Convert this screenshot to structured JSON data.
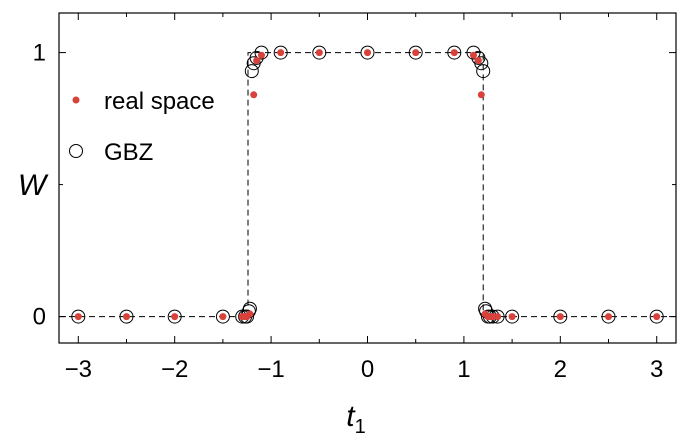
{
  "chart_data": {
    "type": "scatter",
    "xlabel": "t",
    "xlabel_subscript": "1",
    "ylabel": "W",
    "xlim": [
      -3.2,
      3.2
    ],
    "ylim": [
      -0.1,
      1.15
    ],
    "x_ticks": [
      -3,
      -2,
      -1,
      0,
      1,
      2,
      3
    ],
    "x_tick_labels": [
      "−3",
      "−2",
      "−1",
      "0",
      "1",
      "2",
      "3"
    ],
    "y_ticks": [
      0,
      1
    ],
    "y_tick_labels": [
      "0",
      "1"
    ],
    "grid": false,
    "legend_position": "upper-left",
    "series": [
      {
        "name": "real space",
        "marker": "filled-dot",
        "color": "#d9413b",
        "x": [
          -3,
          -2.5,
          -2,
          -1.5,
          -1.3,
          -1.27,
          -1.25,
          -1.22,
          -1.18,
          -1.15,
          -1.1,
          -0.9,
          -0.5,
          0,
          0.5,
          0.9,
          1.1,
          1.15,
          1.18,
          1.22,
          1.25,
          1.27,
          1.3,
          1.35,
          1.5,
          2,
          2.5,
          3
        ],
        "y": [
          0,
          0,
          0,
          0,
          0,
          0,
          0,
          0.01,
          0.84,
          0.97,
          0.99,
          1,
          1,
          1,
          1,
          1,
          0.99,
          0.97,
          0.84,
          0.01,
          0,
          0,
          0,
          0,
          0,
          0,
          0,
          0
        ]
      },
      {
        "name": "GBZ",
        "marker": "open-circle",
        "color": "#000000",
        "x": [
          -3,
          -2.5,
          -2,
          -1.5,
          -1.3,
          -1.27,
          -1.25,
          -1.23,
          -1.22,
          -1.2,
          -1.18,
          -1.15,
          -1.1,
          -0.9,
          -0.5,
          0,
          0.5,
          0.9,
          1.1,
          1.15,
          1.18,
          1.2,
          1.22,
          1.23,
          1.25,
          1.27,
          1.3,
          1.35,
          1.5,
          2,
          2.5,
          3
        ],
        "y": [
          0,
          0,
          0,
          0,
          0,
          0,
          0,
          0.02,
          0.03,
          0.93,
          0.96,
          0.98,
          1,
          1,
          1,
          1,
          1,
          1,
          1,
          0.98,
          0.96,
          0.93,
          0.03,
          0.02,
          0,
          0,
          0,
          0,
          0,
          0,
          0,
          0
        ]
      }
    ],
    "reference_line": {
      "style": "dashed",
      "x": [
        -3.2,
        -1.24,
        -1.24,
        1.2,
        1.2,
        3.2
      ],
      "y": [
        0,
        0,
        1,
        1,
        0,
        0
      ]
    }
  }
}
